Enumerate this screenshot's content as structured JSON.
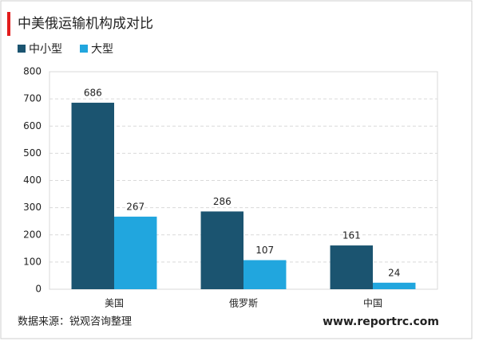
{
  "chart_data": {
    "type": "bar",
    "title": "中美俄运输机构成对比",
    "categories": [
      "美国",
      "俄罗斯",
      "中国"
    ],
    "series": [
      {
        "name": "中小型",
        "color": "#1b5470",
        "values": [
          686,
          286,
          161
        ]
      },
      {
        "name": "大型",
        "color": "#21a6de",
        "values": [
          267,
          107,
          24
        ]
      }
    ],
    "ylim": [
      0,
      800
    ],
    "yticks": [
      0,
      100,
      200,
      300,
      400,
      500,
      600,
      700,
      800
    ],
    "grid": true,
    "source": "数据来源：锐观咨询整理",
    "website": "www.reportrc.com"
  }
}
